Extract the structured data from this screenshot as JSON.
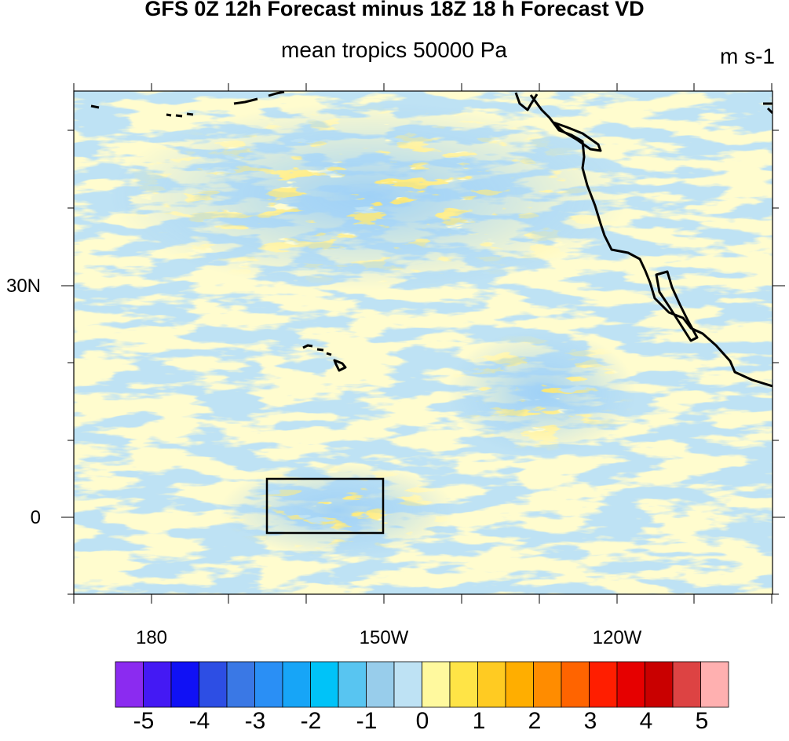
{
  "title": "GFS 0Z 12h Forecast minus 18Z 18 h Forecast VD",
  "subtitle": "mean tropics 50000 Pa",
  "units": "m s-1",
  "map": {
    "background_color": "#BEE2F4",
    "projection": "cylindrical equidistant",
    "lat_labels": [
      "30N",
      "0"
    ],
    "lon_labels": [
      "180",
      "150W",
      "120W"
    ],
    "coastline_color": "#000000",
    "features": [
      "north-america-west-coast",
      "baja-california",
      "hawaiian-islands",
      "aleutian-islands",
      "equatorial-box"
    ]
  },
  "colorbar": {
    "labels": [
      "-5",
      "-4",
      "-3",
      "-2",
      "-1",
      "0",
      "1",
      "2",
      "3",
      "4",
      "5"
    ],
    "colors": [
      "#8B2BF0",
      "#4419F4",
      "#1011F5",
      "#2D4EE4",
      "#3A78E5",
      "#2A8FF5",
      "#17A5F7",
      "#00C3F8",
      "#58C5F1",
      "#98CDEB",
      "#BEE2F4",
      "#FFF99E",
      "#FFE446",
      "#FFCB22",
      "#FFAE00",
      "#FF8C00",
      "#FF6400",
      "#FF1E00",
      "#E60000",
      "#C90000",
      "#DD4343",
      "#FFB0B0"
    ]
  }
}
